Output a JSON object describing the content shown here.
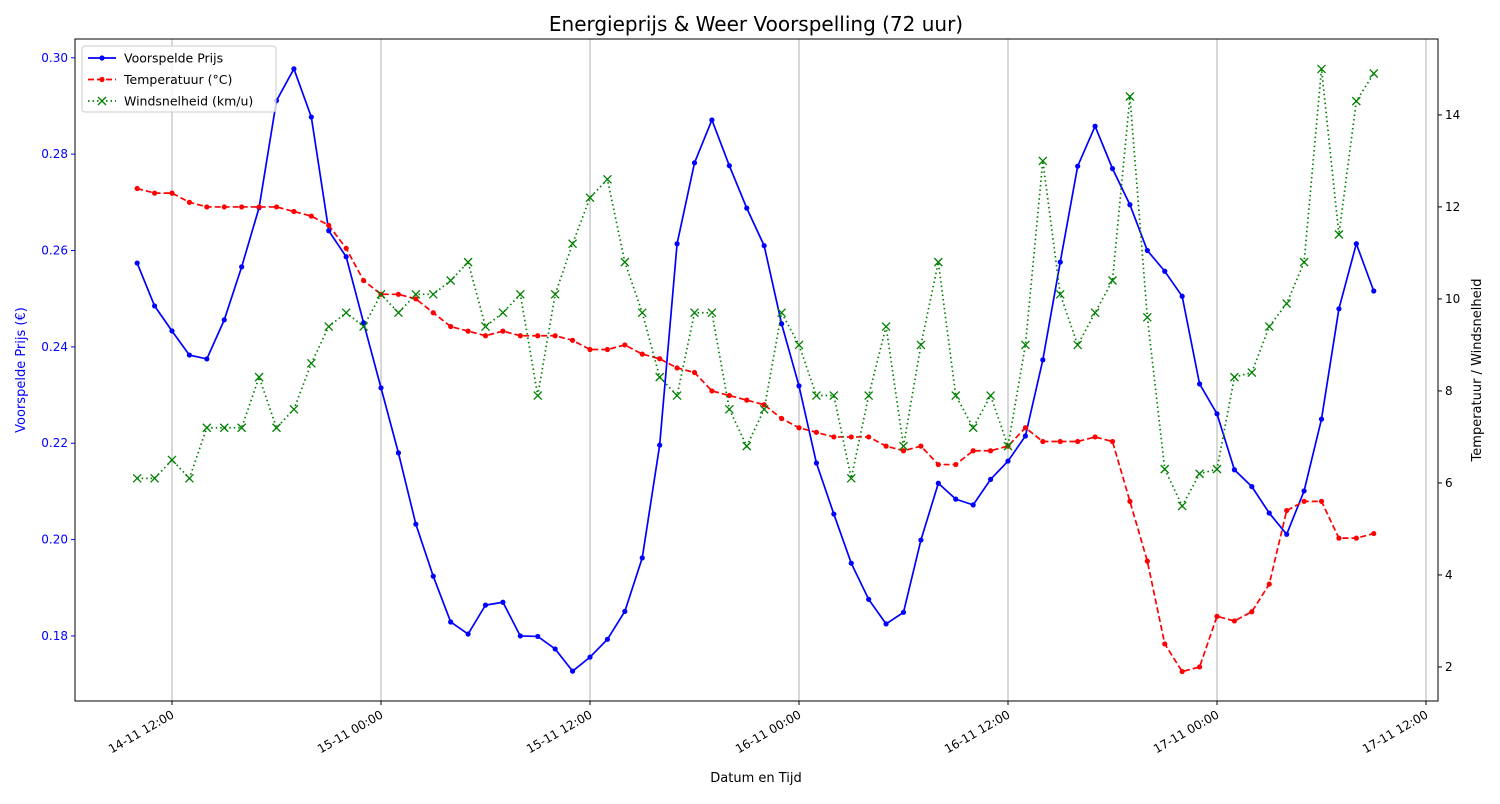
{
  "chart_data": {
    "type": "line",
    "title": "Energieprijs & Weer Voorspelling (72 uur)",
    "xlabel": "Datum en Tijd",
    "ylabel_left": "Voorspelde Prijs (€)",
    "ylabel_right": "Temperatuur / Windsnelheid",
    "x_ticks": [
      "14-11 12:00",
      "15-11 00:00",
      "15-11 12:00",
      "16-11 00:00",
      "16-11 12:00",
      "17-11 00:00",
      "17-11 12:00"
    ],
    "y_left_ticks": [
      "0.18",
      "0.20",
      "0.22",
      "0.24",
      "0.26",
      "0.28",
      "0.30"
    ],
    "y_right_ticks": [
      "2",
      "4",
      "6",
      "8",
      "10",
      "12",
      "14"
    ],
    "ylim_left": [
      0.1665,
      0.3039
    ],
    "ylim_right": [
      1.26,
      15.65
    ],
    "grid": "vertical (x) only",
    "legend_position": "top-left",
    "x": [
      "14-11 10:00",
      "14-11 11:00",
      "14-11 12:00",
      "14-11 13:00",
      "14-11 14:00",
      "14-11 15:00",
      "14-11 16:00",
      "14-11 17:00",
      "14-11 18:00",
      "14-11 19:00",
      "14-11 20:00",
      "14-11 21:00",
      "14-11 22:00",
      "14-11 23:00",
      "15-11 00:00",
      "15-11 01:00",
      "15-11 02:00",
      "15-11 03:00",
      "15-11 04:00",
      "15-11 05:00",
      "15-11 06:00",
      "15-11 07:00",
      "15-11 08:00",
      "15-11 09:00",
      "15-11 10:00",
      "15-11 11:00",
      "15-11 12:00",
      "15-11 13:00",
      "15-11 14:00",
      "15-11 15:00",
      "15-11 16:00",
      "15-11 17:00",
      "15-11 18:00",
      "15-11 19:00",
      "15-11 20:00",
      "15-11 21:00",
      "15-11 22:00",
      "15-11 23:00",
      "16-11 00:00",
      "16-11 01:00",
      "16-11 02:00",
      "16-11 03:00",
      "16-11 04:00",
      "16-11 05:00",
      "16-11 06:00",
      "16-11 07:00",
      "16-11 08:00",
      "16-11 09:00",
      "16-11 10:00",
      "16-11 11:00",
      "16-11 12:00",
      "16-11 13:00",
      "16-11 14:00",
      "16-11 15:00",
      "16-11 16:00",
      "16-11 17:00",
      "16-11 18:00",
      "16-11 19:00",
      "16-11 20:00",
      "16-11 21:00",
      "16-11 22:00",
      "16-11 23:00",
      "17-11 00:00",
      "17-11 01:00",
      "17-11 02:00",
      "17-11 03:00",
      "17-11 04:00",
      "17-11 05:00",
      "17-11 06:00",
      "17-11 07:00",
      "17-11 08:00",
      "17-11 09:00"
    ],
    "series": [
      {
        "name": "Voorspelde Prijs",
        "axis": "left",
        "color": "#0000ff",
        "style": "solid",
        "marker": "dot",
        "values": [
          0.2574,
          0.2485,
          0.2433,
          0.2383,
          0.2375,
          0.2456,
          0.2566,
          0.2689,
          0.2911,
          0.2977,
          0.2877,
          0.2641,
          0.2587,
          0.245,
          0.2315,
          0.218,
          0.2032,
          0.1924,
          0.1829,
          0.1804,
          0.1864,
          0.187,
          0.18,
          0.1799,
          0.1773,
          0.1727,
          0.1756,
          0.1793,
          0.1851,
          0.1962,
          0.2196,
          0.2614,
          0.2782,
          0.2871,
          0.2776,
          0.2688,
          0.261,
          0.2448,
          0.2319,
          0.2159,
          0.2053,
          0.1951,
          0.1876,
          0.1825,
          0.1849,
          0.1999,
          0.2117,
          0.2084,
          0.2072,
          0.2125,
          0.2163,
          0.2215,
          0.2373,
          0.2576,
          0.2775,
          0.2858,
          0.277,
          0.2695,
          0.26,
          0.2557,
          0.2505,
          0.2323,
          0.2261,
          0.2145,
          0.211,
          0.2055,
          0.2011,
          0.2101,
          0.225,
          0.2479,
          0.2614,
          0.2516
        ]
      },
      {
        "name": "Temperatuur (°C)",
        "axis": "right",
        "color": "#ff0000",
        "style": "dashed",
        "marker": "dot",
        "values": [
          12.4,
          12.3,
          12.3,
          12.1,
          12.0,
          12.0,
          12.0,
          12.0,
          12.0,
          11.9,
          11.8,
          11.6,
          11.1,
          10.4,
          10.1,
          10.1,
          10.0,
          9.7,
          9.4,
          9.3,
          9.2,
          9.3,
          9.2,
          9.2,
          9.2,
          9.1,
          8.9,
          8.9,
          9.0,
          8.8,
          8.7,
          8.5,
          8.4,
          8.0,
          7.9,
          7.8,
          7.7,
          7.4,
          7.2,
          7.1,
          7.0,
          7.0,
          7.0,
          6.8,
          6.7,
          6.8,
          6.4,
          6.4,
          6.7,
          6.7,
          6.8,
          7.2,
          6.9,
          6.9,
          6.9,
          7.0,
          6.9,
          5.6,
          4.3,
          2.5,
          1.9,
          2.0,
          3.1,
          3.0,
          3.2,
          3.8,
          5.4,
          5.6,
          5.6,
          4.8,
          4.8,
          4.9
        ]
      },
      {
        "name": "Windsnelheid (km/u)",
        "axis": "right",
        "color": "#008000",
        "style": "dotted",
        "marker": "x",
        "values": [
          6.1,
          6.1,
          6.5,
          6.1,
          7.2,
          7.2,
          7.2,
          8.3,
          7.2,
          7.6,
          8.6,
          9.4,
          9.7,
          9.4,
          10.1,
          9.7,
          10.1,
          10.1,
          10.4,
          10.8,
          9.4,
          9.7,
          10.1,
          7.9,
          10.1,
          11.2,
          12.2,
          12.6,
          10.8,
          9.7,
          8.3,
          7.9,
          9.7,
          9.7,
          7.6,
          6.8,
          7.6,
          9.7,
          9.0,
          7.9,
          7.9,
          6.1,
          7.9,
          9.4,
          6.8,
          9.0,
          10.8,
          7.9,
          7.2,
          7.9,
          6.8,
          9.0,
          13.0,
          10.1,
          9.0,
          9.7,
          10.4,
          14.4,
          9.6,
          6.3,
          5.5,
          6.2,
          6.3,
          8.3,
          8.4,
          9.4,
          9.9,
          10.8,
          15.0,
          11.4,
          14.3,
          14.9
        ]
      }
    ]
  }
}
